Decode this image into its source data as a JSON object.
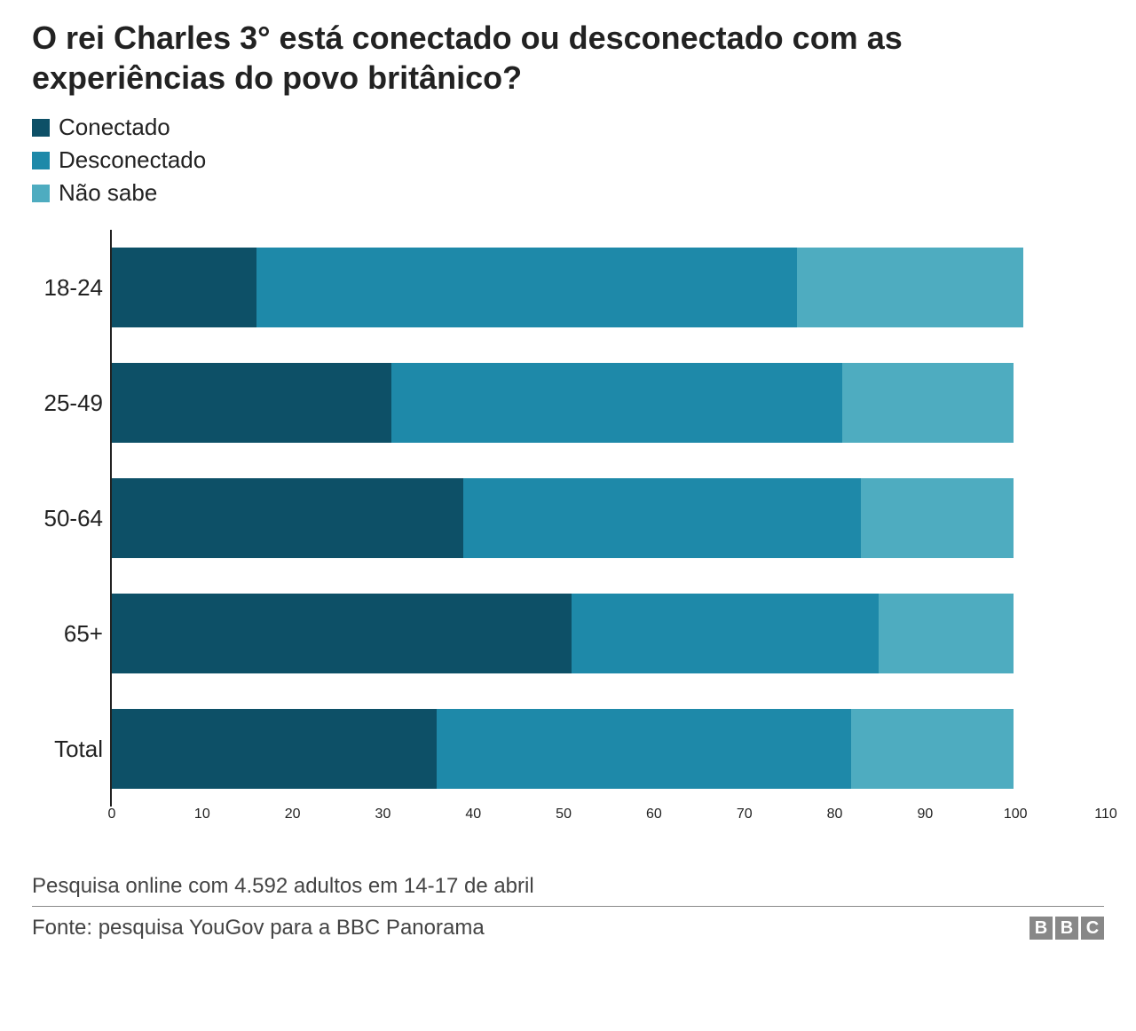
{
  "title": "O rei Charles 3° está conectado ou desconectado com as experiências do povo britânico?",
  "legend": [
    {
      "label": "Conectado",
      "color": "#0d5067"
    },
    {
      "label": "Desconectado",
      "color": "#1e89a9"
    },
    {
      "label": "Não sabe",
      "color": "#4eacc0"
    }
  ],
  "chart": {
    "type": "stacked-horizontal-bar",
    "xlim": [
      0,
      110
    ],
    "xtick_step": 10,
    "xticks": [
      0,
      10,
      20,
      30,
      40,
      50,
      60,
      70,
      80,
      90,
      100,
      110
    ],
    "categories": [
      "18-24",
      "25-49",
      "50-64",
      "65+",
      "Total"
    ],
    "series_colors": [
      "#0d5067",
      "#1e89a9",
      "#4eacc0"
    ],
    "data": [
      [
        16,
        60,
        25
      ],
      [
        31,
        50,
        19
      ],
      [
        39,
        44,
        17
      ],
      [
        51,
        34,
        15
      ],
      [
        36,
        46,
        18
      ]
    ],
    "background_color": "#ffffff",
    "axis_color": "#222222",
    "bar_height_ratio": 0.7,
    "label_fontsize": 26,
    "title_fontsize": 36,
    "title_fontweight": 700
  },
  "subtitle": "Pesquisa online com 4.592 adultos em 14-17 de abril",
  "source": "Fonte: pesquisa YouGov para a BBC Panorama",
  "logo": {
    "letters": [
      "B",
      "B",
      "C"
    ],
    "bg": "#888888",
    "fg": "#ffffff"
  }
}
